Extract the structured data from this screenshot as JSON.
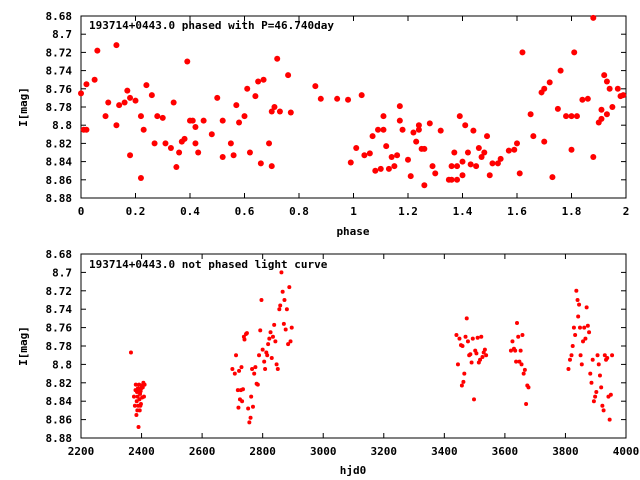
{
  "chart_data": [
    {
      "type": "scatter",
      "title": "193714+0443.0 phased with P=46.740day",
      "xlabel": "phase",
      "ylabel": "I[mag]",
      "xlim": [
        0,
        2
      ],
      "ylim": [
        8.68,
        8.88
      ],
      "y_inverted": true,
      "grid": false,
      "marker_color": "#ff0000",
      "marker": "filled-circle-large",
      "xticks": [
        "0",
        "0.2",
        "0.4",
        "0.6",
        "0.8",
        "1",
        "1.2",
        "1.4",
        "1.6",
        "1.8",
        "2"
      ],
      "xtick_values": [
        0,
        0.2,
        0.4,
        0.6,
        0.8,
        1.0,
        1.2,
        1.4,
        1.6,
        1.8,
        2.0
      ],
      "yticks": [
        "8.68",
        "8.7",
        "8.72",
        "8.74",
        "8.76",
        "8.78",
        "8.8",
        "8.82",
        "8.84",
        "8.86",
        "8.88"
      ],
      "ytick_values": [
        8.68,
        8.7,
        8.72,
        8.74,
        8.76,
        8.78,
        8.8,
        8.82,
        8.84,
        8.86,
        8.88
      ],
      "points": [
        [
          0.0,
          8.765
        ],
        [
          0.01,
          8.805
        ],
        [
          0.02,
          8.805
        ],
        [
          0.02,
          8.755
        ],
        [
          0.05,
          8.75
        ],
        [
          0.06,
          8.718
        ],
        [
          0.09,
          8.79
        ],
        [
          0.1,
          8.775
        ],
        [
          0.13,
          8.712
        ],
        [
          0.13,
          8.8
        ],
        [
          0.14,
          8.778
        ],
        [
          0.16,
          8.775
        ],
        [
          0.17,
          8.762
        ],
        [
          0.18,
          8.77
        ],
        [
          0.18,
          8.833
        ],
        [
          0.2,
          8.773
        ],
        [
          0.22,
          8.79
        ],
        [
          0.22,
          8.858
        ],
        [
          0.23,
          8.805
        ],
        [
          0.24,
          8.756
        ],
        [
          0.26,
          8.767
        ],
        [
          0.27,
          8.82
        ],
        [
          0.28,
          8.79
        ],
        [
          0.3,
          8.792
        ],
        [
          0.31,
          8.82
        ],
        [
          0.33,
          8.825
        ],
        [
          0.34,
          8.775
        ],
        [
          0.35,
          8.846
        ],
        [
          0.36,
          8.83
        ],
        [
          0.37,
          8.818
        ],
        [
          0.38,
          8.815
        ],
        [
          0.39,
          8.73
        ],
        [
          0.4,
          8.795
        ],
        [
          0.41,
          8.795
        ],
        [
          0.42,
          8.802
        ],
        [
          0.42,
          8.82
        ],
        [
          0.43,
          8.83
        ],
        [
          0.45,
          8.795
        ],
        [
          0.48,
          8.81
        ],
        [
          0.5,
          8.77
        ],
        [
          0.52,
          8.795
        ],
        [
          0.52,
          8.835
        ],
        [
          0.55,
          8.82
        ],
        [
          0.56,
          8.833
        ],
        [
          0.57,
          8.778
        ],
        [
          0.58,
          8.797
        ],
        [
          0.6,
          8.79
        ],
        [
          0.61,
          8.76
        ],
        [
          0.62,
          8.83
        ],
        [
          0.64,
          8.768
        ],
        [
          0.65,
          8.752
        ],
        [
          0.66,
          8.842
        ],
        [
          0.67,
          8.75
        ],
        [
          0.69,
          8.82
        ],
        [
          0.7,
          8.785
        ],
        [
          0.7,
          8.845
        ],
        [
          0.71,
          8.78
        ],
        [
          0.72,
          8.727
        ],
        [
          0.73,
          8.785
        ],
        [
          0.76,
          8.745
        ],
        [
          0.77,
          8.786
        ],
        [
          0.86,
          8.757
        ],
        [
          0.88,
          8.771
        ],
        [
          0.94,
          8.771
        ],
        [
          0.98,
          8.772
        ],
        [
          0.99,
          8.841
        ],
        [
          1.01,
          8.825
        ],
        [
          1.03,
          8.767
        ],
        [
          1.04,
          8.833
        ],
        [
          1.06,
          8.831
        ],
        [
          1.07,
          8.812
        ],
        [
          1.08,
          8.85
        ],
        [
          1.09,
          8.805
        ],
        [
          1.1,
          8.848
        ],
        [
          1.11,
          8.805
        ],
        [
          1.11,
          8.79
        ],
        [
          1.12,
          8.823
        ],
        [
          1.13,
          8.848
        ],
        [
          1.14,
          8.835
        ],
        [
          1.15,
          8.845
        ],
        [
          1.16,
          8.833
        ],
        [
          1.17,
          8.779
        ],
        [
          1.17,
          8.795
        ],
        [
          1.18,
          8.805
        ],
        [
          1.2,
          8.838
        ],
        [
          1.21,
          8.856
        ],
        [
          1.22,
          8.808
        ],
        [
          1.23,
          8.818
        ],
        [
          1.24,
          8.805
        ],
        [
          1.24,
          8.8
        ],
        [
          1.25,
          8.826
        ],
        [
          1.26,
          8.866
        ],
        [
          1.26,
          8.826
        ],
        [
          1.28,
          8.798
        ],
        [
          1.29,
          8.845
        ],
        [
          1.3,
          8.853
        ],
        [
          1.32,
          8.806
        ],
        [
          1.35,
          8.86
        ],
        [
          1.36,
          8.86
        ],
        [
          1.36,
          8.845
        ],
        [
          1.37,
          8.83
        ],
        [
          1.38,
          8.845
        ],
        [
          1.38,
          8.86
        ],
        [
          1.39,
          8.79
        ],
        [
          1.4,
          8.84
        ],
        [
          1.4,
          8.855
        ],
        [
          1.41,
          8.8
        ],
        [
          1.42,
          8.83
        ],
        [
          1.43,
          8.843
        ],
        [
          1.44,
          8.806
        ],
        [
          1.45,
          8.845
        ],
        [
          1.46,
          8.825
        ],
        [
          1.47,
          8.835
        ],
        [
          1.48,
          8.83
        ],
        [
          1.49,
          8.812
        ],
        [
          1.5,
          8.855
        ],
        [
          1.51,
          8.842
        ],
        [
          1.53,
          8.842
        ],
        [
          1.54,
          8.837
        ],
        [
          1.57,
          8.828
        ],
        [
          1.59,
          8.827
        ],
        [
          1.6,
          8.82
        ],
        [
          1.61,
          8.853
        ],
        [
          1.62,
          8.72
        ],
        [
          1.65,
          8.788
        ],
        [
          1.66,
          8.812
        ],
        [
          1.69,
          8.764
        ],
        [
          1.7,
          8.818
        ],
        [
          1.7,
          8.76
        ],
        [
          1.72,
          8.753
        ],
        [
          1.73,
          8.857
        ],
        [
          1.75,
          8.782
        ],
        [
          1.76,
          8.74
        ],
        [
          1.78,
          8.79
        ],
        [
          1.8,
          8.827
        ],
        [
          1.8,
          8.79
        ],
        [
          1.81,
          8.72
        ],
        [
          1.82,
          8.79
        ],
        [
          1.84,
          8.772
        ],
        [
          1.86,
          8.771
        ],
        [
          1.88,
          8.835
        ],
        [
          1.88,
          8.682
        ],
        [
          1.9,
          8.797
        ],
        [
          1.91,
          8.783
        ],
        [
          1.91,
          8.793
        ],
        [
          1.92,
          8.745
        ],
        [
          1.93,
          8.752
        ],
        [
          1.93,
          8.788
        ],
        [
          1.94,
          8.76
        ],
        [
          1.95,
          8.78
        ],
        [
          1.97,
          8.76
        ],
        [
          1.98,
          8.768
        ],
        [
          1.99,
          8.767
        ]
      ]
    },
    {
      "type": "scatter",
      "title": "193714+0443.0 not phased light curve",
      "xlabel": "hjd0",
      "ylabel": "I[mag]",
      "xlim": [
        2200,
        4000
      ],
      "ylim": [
        8.68,
        8.88
      ],
      "y_inverted": true,
      "grid": false,
      "marker_color": "#ff0000",
      "marker": "filled-circle-small",
      "xticks": [
        "2200",
        "2400",
        "2600",
        "2800",
        "3000",
        "3200",
        "3400",
        "3600",
        "3800",
        "4000"
      ],
      "xtick_values": [
        2200,
        2400,
        2600,
        2800,
        3000,
        3200,
        3400,
        3600,
        3800,
        4000
      ],
      "yticks": [
        "8.68",
        "8.7",
        "8.72",
        "8.74",
        "8.76",
        "8.78",
        "8.8",
        "8.82",
        "8.84",
        "8.86",
        "8.88"
      ],
      "ytick_values": [
        8.68,
        8.7,
        8.72,
        8.74,
        8.76,
        8.78,
        8.8,
        8.82,
        8.84,
        8.86,
        8.88
      ],
      "points": [
        [
          2365,
          8.787
        ],
        [
          2375,
          8.835
        ],
        [
          2378,
          8.845
        ],
        [
          2380,
          8.828
        ],
        [
          2381,
          8.822
        ],
        [
          2383,
          8.855
        ],
        [
          2384,
          8.84
        ],
        [
          2385,
          8.83
        ],
        [
          2386,
          8.85
        ],
        [
          2387,
          8.835
        ],
        [
          2388,
          8.826
        ],
        [
          2389,
          8.845
        ],
        [
          2390,
          8.868
        ],
        [
          2391,
          8.828
        ],
        [
          2392,
          8.822
        ],
        [
          2393,
          8.838
        ],
        [
          2394,
          8.85
        ],
        [
          2395,
          8.832
        ],
        [
          2396,
          8.845
        ],
        [
          2397,
          8.829
        ],
        [
          2398,
          8.843
        ],
        [
          2399,
          8.826
        ],
        [
          2400,
          8.823
        ],
        [
          2402,
          8.836
        ],
        [
          2404,
          8.825
        ],
        [
          2406,
          8.82
        ],
        [
          2408,
          8.835
        ],
        [
          2410,
          8.822
        ],
        [
          2700,
          8.805
        ],
        [
          2708,
          8.81
        ],
        [
          2712,
          8.79
        ],
        [
          2718,
          8.828
        ],
        [
          2720,
          8.847
        ],
        [
          2722,
          8.807
        ],
        [
          2725,
          8.838
        ],
        [
          2728,
          8.828
        ],
        [
          2730,
          8.803
        ],
        [
          2732,
          8.84
        ],
        [
          2735,
          8.827
        ],
        [
          2738,
          8.77
        ],
        [
          2740,
          8.773
        ],
        [
          2745,
          8.767
        ],
        [
          2748,
          8.766
        ],
        [
          2752,
          8.848
        ],
        [
          2756,
          8.863
        ],
        [
          2760,
          8.858
        ],
        [
          2762,
          8.835
        ],
        [
          2765,
          8.805
        ],
        [
          2768,
          8.846
        ],
        [
          2772,
          8.81
        ],
        [
          2776,
          8.803
        ],
        [
          2780,
          8.821
        ],
        [
          2784,
          8.822
        ],
        [
          2788,
          8.79
        ],
        [
          2792,
          8.763
        ],
        [
          2796,
          8.73
        ],
        [
          2800,
          8.784
        ],
        [
          2805,
          8.797
        ],
        [
          2808,
          8.805
        ],
        [
          2812,
          8.787
        ],
        [
          2815,
          8.79
        ],
        [
          2818,
          8.778
        ],
        [
          2822,
          8.772
        ],
        [
          2826,
          8.765
        ],
        [
          2830,
          8.793
        ],
        [
          2834,
          8.77
        ],
        [
          2838,
          8.757
        ],
        [
          2842,
          8.775
        ],
        [
          2846,
          8.8
        ],
        [
          2850,
          8.805
        ],
        [
          2855,
          8.74
        ],
        [
          2858,
          8.736
        ],
        [
          2862,
          8.7
        ],
        [
          2866,
          8.721
        ],
        [
          2870,
          8.756
        ],
        [
          2872,
          8.73
        ],
        [
          2876,
          8.762
        ],
        [
          2880,
          8.74
        ],
        [
          2884,
          8.778
        ],
        [
          2888,
          8.716
        ],
        [
          2892,
          8.775
        ],
        [
          2896,
          8.76
        ],
        [
          3440,
          8.768
        ],
        [
          3445,
          8.8
        ],
        [
          3450,
          8.772
        ],
        [
          3455,
          8.779
        ],
        [
          3458,
          8.823
        ],
        [
          3460,
          8.78
        ],
        [
          3463,
          8.819
        ],
        [
          3466,
          8.81
        ],
        [
          3470,
          8.77
        ],
        [
          3474,
          8.75
        ],
        [
          3478,
          8.775
        ],
        [
          3482,
          8.79
        ],
        [
          3486,
          8.789
        ],
        [
          3490,
          8.798
        ],
        [
          3494,
          8.772
        ],
        [
          3498,
          8.838
        ],
        [
          3502,
          8.785
        ],
        [
          3506,
          8.788
        ],
        [
          3510,
          8.771
        ],
        [
          3514,
          8.798
        ],
        [
          3518,
          8.795
        ],
        [
          3522,
          8.77
        ],
        [
          3526,
          8.792
        ],
        [
          3530,
          8.787
        ],
        [
          3534,
          8.784
        ],
        [
          3538,
          8.79
        ],
        [
          3620,
          8.785
        ],
        [
          3625,
          8.775
        ],
        [
          3630,
          8.783
        ],
        [
          3634,
          8.785
        ],
        [
          3637,
          8.797
        ],
        [
          3640,
          8.755
        ],
        [
          3644,
          8.77
        ],
        [
          3648,
          8.797
        ],
        [
          3652,
          8.785
        ],
        [
          3655,
          8.8
        ],
        [
          3658,
          8.768
        ],
        [
          3662,
          8.81
        ],
        [
          3666,
          8.806
        ],
        [
          3670,
          8.843
        ],
        [
          3674,
          8.823
        ],
        [
          3678,
          8.825
        ],
        [
          3810,
          8.805
        ],
        [
          3815,
          8.795
        ],
        [
          3820,
          8.79
        ],
        [
          3824,
          8.78
        ],
        [
          3828,
          8.76
        ],
        [
          3832,
          8.768
        ],
        [
          3836,
          8.72
        ],
        [
          3840,
          8.73
        ],
        [
          3842,
          8.748
        ],
        [
          3845,
          8.735
        ],
        [
          3848,
          8.76
        ],
        [
          3850,
          8.79
        ],
        [
          3854,
          8.8
        ],
        [
          3858,
          8.775
        ],
        [
          3862,
          8.76
        ],
        [
          3866,
          8.772
        ],
        [
          3870,
          8.738
        ],
        [
          3874,
          8.758
        ],
        [
          3878,
          8.765
        ],
        [
          3882,
          8.81
        ],
        [
          3886,
          8.82
        ],
        [
          3890,
          8.795
        ],
        [
          3894,
          8.84
        ],
        [
          3898,
          8.835
        ],
        [
          3902,
          8.83
        ],
        [
          3906,
          8.79
        ],
        [
          3910,
          8.8
        ],
        [
          3914,
          8.812
        ],
        [
          3918,
          8.825
        ],
        [
          3922,
          8.845
        ],
        [
          3926,
          8.85
        ],
        [
          3930,
          8.79
        ],
        [
          3934,
          8.795
        ],
        [
          3938,
          8.793
        ],
        [
          3942,
          8.835
        ],
        [
          3946,
          8.86
        ],
        [
          3950,
          8.833
        ],
        [
          3954,
          8.79
        ]
      ]
    }
  ]
}
